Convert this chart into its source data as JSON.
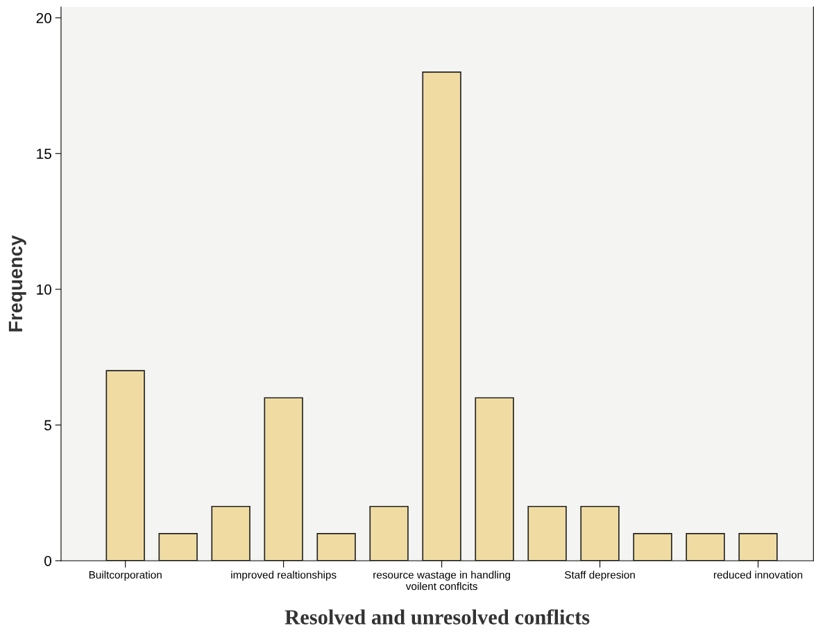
{
  "chart_data": {
    "type": "bar",
    "xlabel": "Resolved and unresolved conflicts",
    "ylabel": "Frequency",
    "categories": [
      "Builtcorporation",
      null,
      null,
      "improved realtionships",
      null,
      null,
      "resource wastage in handling\nvoilent conflcits",
      null,
      null,
      "Staff depresion",
      null,
      null,
      "reduced innovation"
    ],
    "values": [
      7,
      1,
      2,
      6,
      1,
      2,
      18,
      6,
      2,
      2,
      1,
      1,
      1
    ],
    "color": "#f0dca2",
    "ylim": [
      0,
      20.4
    ],
    "yticks": [
      0,
      5,
      10,
      15,
      20
    ],
    "grid": false
  }
}
